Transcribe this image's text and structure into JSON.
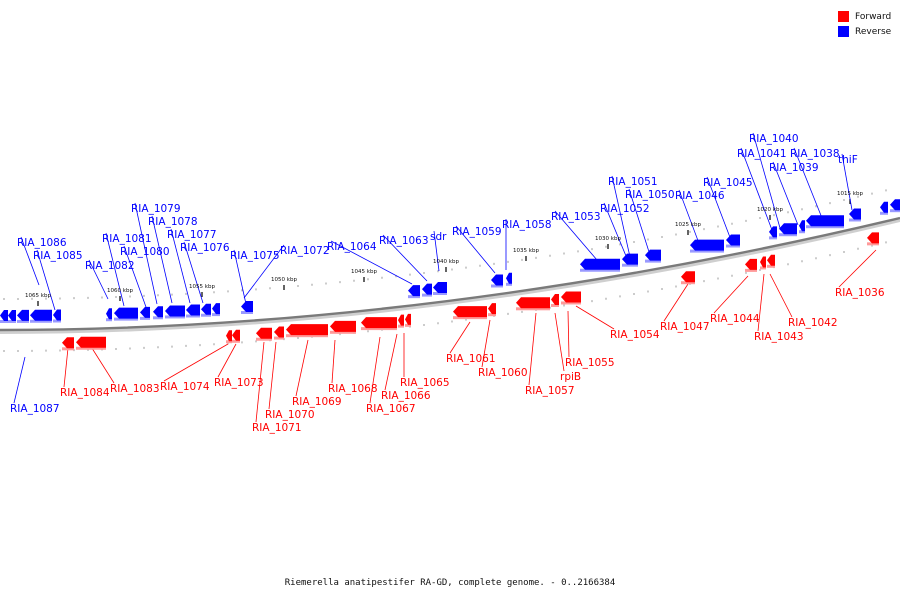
{
  "legend": {
    "forward_label": "Forward",
    "reverse_label": "Reverse",
    "forward_color": "#ff0000",
    "reverse_color": "#0000ff"
  },
  "caption": "Riemerella anatipestifer RA-GD, complete genome. - 0..2166384",
  "chart_data": {
    "type": "genome-map",
    "scale_labels": [
      "1065 kbp",
      "1060 kbp",
      "1055 kbp",
      "1050 kbp",
      "1045 kbp",
      "1040 kbp",
      "1035 kbp",
      "1030 kbp",
      "1025 kbp",
      "1020 kbp",
      "1015 kbp"
    ],
    "forward_genes": [
      "RIA_1084",
      "RIA_1083",
      "RIA_1074",
      "RIA_1073",
      "RIA_1071",
      "RIA_1070",
      "RIA_1069",
      "RIA_1068",
      "RIA_1067",
      "RIA_1066",
      "RIA_1065",
      "RIA_1061",
      "RIA_1060",
      "RIA_1057",
      "rpiB",
      "RIA_1055",
      "RIA_1054",
      "RIA_1047",
      "RIA_1044",
      "RIA_1043",
      "RIA_1042",
      "RIA_1036"
    ],
    "reverse_genes": [
      "RIA_1087",
      "RIA_1086",
      "RIA_1085",
      "RIA_1082",
      "RIA_1081",
      "RIA_1080",
      "RIA_1079",
      "RIA_1078",
      "RIA_1077",
      "RIA_1076",
      "RIA_1075",
      "RIA_1072",
      "RIA_1064",
      "RIA_1063",
      "sdr",
      "RIA_1059",
      "RIA_1058",
      "RIA_1053",
      "RIA_1052",
      "RIA_1051",
      "RIA_1050",
      "RIA_1046",
      "RIA_1045",
      "RIA_1041",
      "RIA_1040",
      "RIA_1039",
      "RIA_1038",
      "thiF"
    ]
  }
}
